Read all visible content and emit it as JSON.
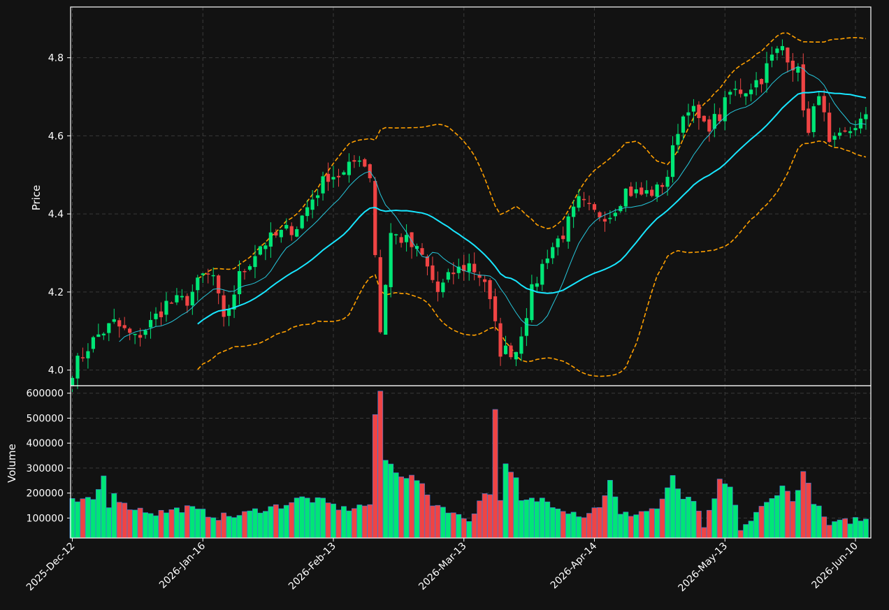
{
  "chart_data": {
    "type": "candlestick",
    "ylabel_price": "Price",
    "ylabel_volume": "Volume",
    "price_ticks": [
      4.0,
      4.2,
      4.4,
      4.6,
      4.8
    ],
    "price_ylim": [
      3.96,
      4.93
    ],
    "volume_ticks": [
      100000,
      200000,
      300000,
      400000,
      500000,
      600000
    ],
    "volume_ylim": [
      20000,
      630000
    ],
    "x_tick_labels": [
      {
        "i": 0,
        "label": "2025-Dec-12"
      },
      {
        "i": 25,
        "label": "2026-Jan-16"
      },
      {
        "i": 50,
        "label": "2026-Feb-13"
      },
      {
        "i": 75,
        "label": "2026-Mar-13"
      },
      {
        "i": 100,
        "label": "2026-Apr-14"
      },
      {
        "i": 125,
        "label": "2026-May-13"
      },
      {
        "i": 150,
        "label": "2026-Jun-10"
      }
    ],
    "grid": true,
    "colors": {
      "up": "#00e676",
      "down": "#ef4444",
      "ma_fast": "#26c6da",
      "ma_slow": "#18e6ff",
      "bands": "#ffa000",
      "background": "#121212",
      "grid": "#3a3a3a"
    },
    "anchors": [
      [
        0,
        4.0
      ],
      [
        3,
        4.06
      ],
      [
        5,
        4.09
      ],
      [
        8,
        4.12
      ],
      [
        12,
        4.08
      ],
      [
        15,
        4.12
      ],
      [
        18,
        4.17
      ],
      [
        22,
        4.18
      ],
      [
        25,
        4.24
      ],
      [
        27,
        4.24
      ],
      [
        29,
        4.12
      ],
      [
        32,
        4.24
      ],
      [
        36,
        4.32
      ],
      [
        40,
        4.35
      ],
      [
        43,
        4.37
      ],
      [
        46,
        4.44
      ],
      [
        49,
        4.5
      ],
      [
        52,
        4.5
      ],
      [
        55,
        4.55
      ],
      [
        57,
        4.5
      ],
      [
        59,
        4.1
      ],
      [
        61,
        4.35
      ],
      [
        64,
        4.33
      ],
      [
        67,
        4.29
      ],
      [
        70,
        4.2
      ],
      [
        73,
        4.25
      ],
      [
        76,
        4.27
      ],
      [
        79,
        4.23
      ],
      [
        82,
        4.05
      ],
      [
        85,
        4.05
      ],
      [
        88,
        4.2
      ],
      [
        91,
        4.3
      ],
      [
        94,
        4.35
      ],
      [
        97,
        4.43
      ],
      [
        100,
        4.4
      ],
      [
        103,
        4.4
      ],
      [
        106,
        4.46
      ],
      [
        109,
        4.45
      ],
      [
        112,
        4.46
      ],
      [
        114,
        4.5
      ],
      [
        116,
        4.62
      ],
      [
        118,
        4.68
      ],
      [
        121,
        4.62
      ],
      [
        124,
        4.65
      ],
      [
        126,
        4.71
      ],
      [
        129,
        4.72
      ],
      [
        132,
        4.75
      ],
      [
        134,
        4.8
      ],
      [
        136,
        4.83
      ],
      [
        139,
        4.76
      ],
      [
        141,
        4.6
      ],
      [
        143,
        4.72
      ],
      [
        145,
        4.57
      ],
      [
        148,
        4.6
      ],
      [
        150,
        4.63
      ],
      [
        152,
        4.64
      ]
    ],
    "volume_anchors": [
      [
        0,
        165000
      ],
      [
        4,
        170000
      ],
      [
        6,
        265000
      ],
      [
        7,
        155000
      ],
      [
        8,
        205000
      ],
      [
        10,
        150000
      ],
      [
        16,
        120000
      ],
      [
        22,
        140000
      ],
      [
        28,
        105000
      ],
      [
        32,
        110000
      ],
      [
        36,
        135000
      ],
      [
        40,
        150000
      ],
      [
        44,
        180000
      ],
      [
        48,
        165000
      ],
      [
        52,
        135000
      ],
      [
        57,
        155000
      ],
      [
        58,
        500000
      ],
      [
        59,
        610000
      ],
      [
        60,
        330000
      ],
      [
        63,
        275000
      ],
      [
        66,
        255000
      ],
      [
        69,
        160000
      ],
      [
        72,
        135000
      ],
      [
        74,
        105000
      ],
      [
        76,
        95000
      ],
      [
        79,
        200000
      ],
      [
        80,
        205000
      ],
      [
        81,
        525000
      ],
      [
        82,
        185000
      ],
      [
        83,
        305000
      ],
      [
        85,
        250000
      ],
      [
        86,
        165000
      ],
      [
        90,
        175000
      ],
      [
        95,
        130000
      ],
      [
        98,
        110000
      ],
      [
        101,
        150000
      ],
      [
        103,
        245000
      ],
      [
        105,
        110000
      ],
      [
        108,
        120000
      ],
      [
        112,
        140000
      ],
      [
        114,
        210000
      ],
      [
        115,
        260000
      ],
      [
        117,
        180000
      ],
      [
        119,
        160000
      ],
      [
        121,
        70000
      ],
      [
        123,
        165000
      ],
      [
        124,
        250000
      ],
      [
        126,
        220000
      ],
      [
        128,
        60000
      ],
      [
        130,
        90000
      ],
      [
        132,
        140000
      ],
      [
        134,
        175000
      ],
      [
        136,
        235000
      ],
      [
        138,
        165000
      ],
      [
        140,
        285000
      ],
      [
        142,
        170000
      ],
      [
        144,
        100000
      ],
      [
        145,
        70000
      ],
      [
        150,
        95000
      ],
      [
        152,
        90000
      ]
    ]
  }
}
